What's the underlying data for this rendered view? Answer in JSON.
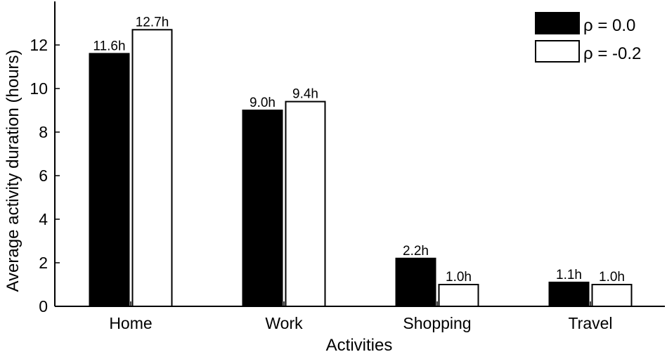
{
  "chart_data": {
    "type": "bar",
    "title": "",
    "xlabel": "Activities",
    "ylabel": "Average activity duration (hours)",
    "categories": [
      "Home",
      "Work",
      "Shopping",
      "Travel"
    ],
    "ylim": [
      0,
      14
    ],
    "yticks": [
      0,
      2,
      4,
      6,
      8,
      10,
      12
    ],
    "grid": false,
    "legend_position": "top-right",
    "series": [
      {
        "name": "ρ = 0.0",
        "color": "#000000",
        "values": [
          11.6,
          9.0,
          2.2,
          1.1
        ],
        "labels": [
          "11.6h",
          "9.0h",
          "2.2h",
          "1.1h"
        ]
      },
      {
        "name": "ρ = -0.2",
        "color": "#ffffff",
        "values": [
          12.7,
          9.4,
          1.0,
          1.0
        ],
        "labels": [
          "12.7h",
          "9.4h",
          "1.0h",
          "1.0h"
        ]
      }
    ]
  }
}
